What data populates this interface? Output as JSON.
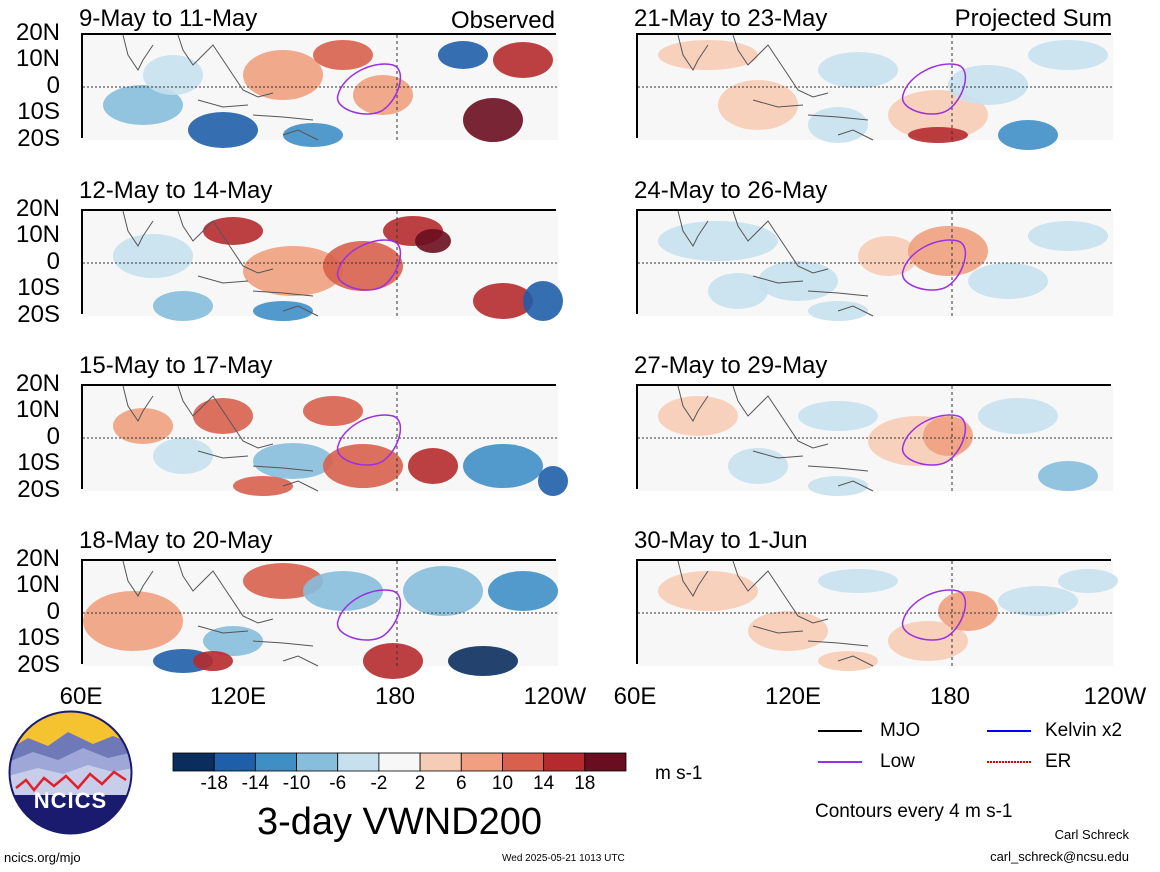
{
  "observed_label": "Observed",
  "projected_label": "Projected Sum",
  "panels_left": [
    {
      "title": "9-May to 11-May"
    },
    {
      "title": "12-May to 14-May"
    },
    {
      "title": "15-May to 17-May"
    },
    {
      "title": "18-May to 20-May"
    }
  ],
  "panels_right": [
    {
      "title": "21-May to 23-May"
    },
    {
      "title": "24-May to 26-May"
    },
    {
      "title": "27-May to 29-May"
    },
    {
      "title": "30-May to 1-Jun"
    }
  ],
  "lat_labels": [
    "20N",
    "10N",
    "0",
    "10S",
    "20S"
  ],
  "lon_labels_left": [
    "60E",
    "120E",
    "180",
    "120W"
  ],
  "lon_labels_right": [
    "60E",
    "120E",
    "180",
    "120W"
  ],
  "colorbar": {
    "colors": [
      "#0b2d5e",
      "#1f5ea8",
      "#3f8fc5",
      "#86bedb",
      "#c6e0ee",
      "#f7f7f7",
      "#f7ccb6",
      "#f0a080",
      "#d8604d",
      "#b52a2e",
      "#6a0d20"
    ],
    "labels": [
      "-18",
      "-14",
      "-10",
      "-6",
      "-2",
      "2",
      "6",
      "10",
      "14",
      "18"
    ],
    "units": "m s-1"
  },
  "title": "3-day VWND200",
  "logo_text": "NCICS",
  "legend": [
    {
      "label": "MJO",
      "color": "#000000"
    },
    {
      "label": "Kelvin x2",
      "color": "#0000ff"
    },
    {
      "label": "Low",
      "color": "#9b30e0"
    },
    {
      "label": "ER",
      "color": "#e00000"
    }
  ],
  "contours_note": "Contours every 4 m s-1",
  "author": "Carl Schreck",
  "email": "carl_schreck@ncsu.edu",
  "site": "ncics.org/mjo",
  "timestamp": "Wed 2025-05-21 1013 UTC"
}
